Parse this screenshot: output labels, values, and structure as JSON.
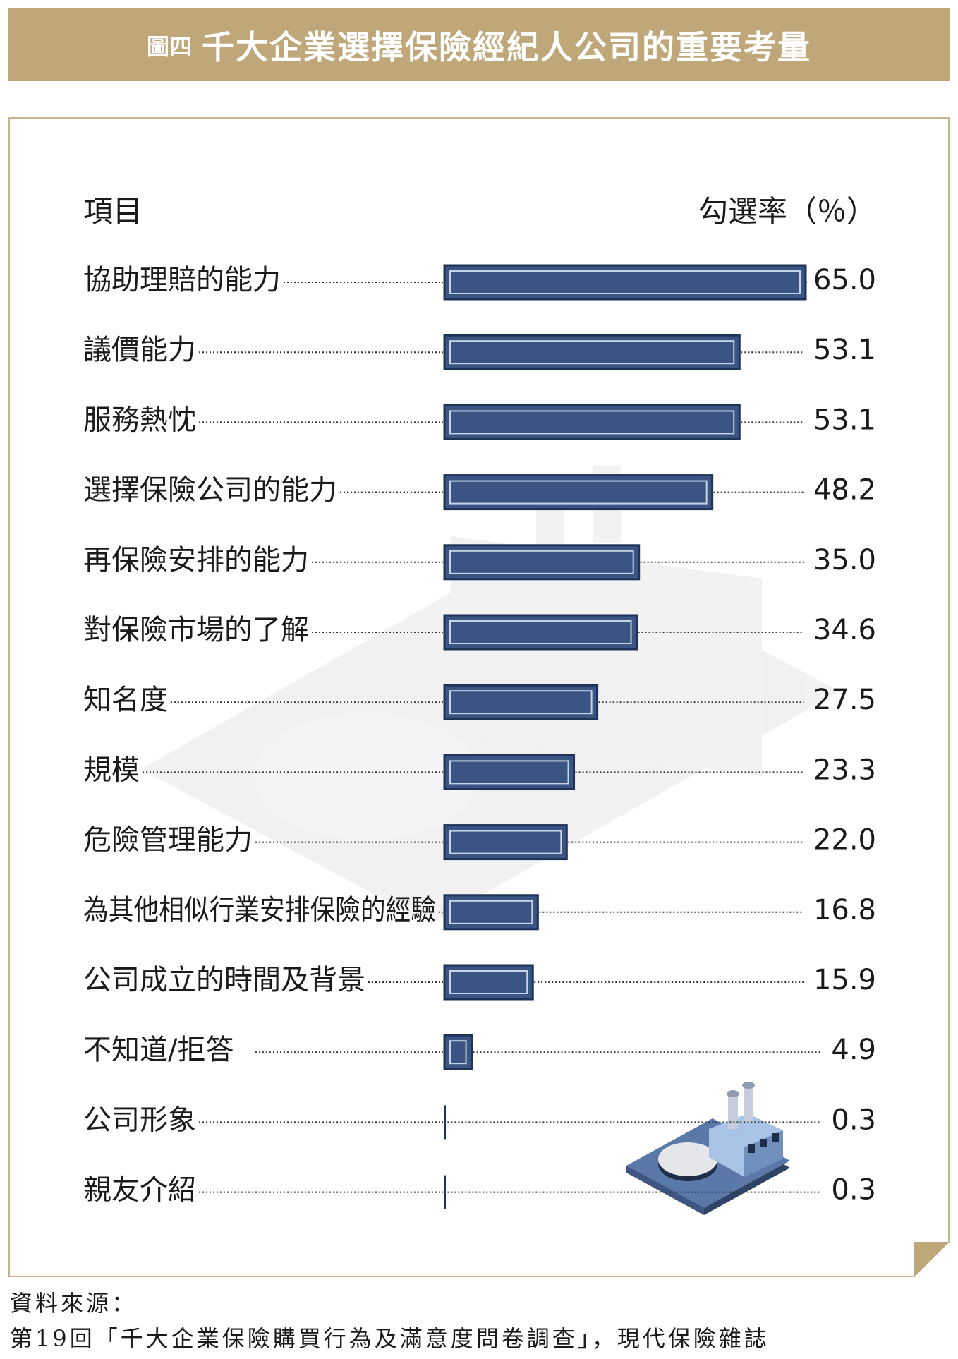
{
  "header": {
    "figure_number": "圖四",
    "title": "千大企業選擇保險經紀人公司的重要考量"
  },
  "columns": {
    "item_label": "項目",
    "rate_label": "勾選率（％）"
  },
  "colors": {
    "title_bar": "#bfa77a",
    "bar_fill": "#3a5584",
    "bar_border": "#1f3358",
    "leader": "#333333"
  },
  "chart_data": {
    "type": "bar",
    "orientation": "horizontal",
    "categories": [
      "協助理賠的能力",
      "議價能力",
      "服務熱忱",
      "選擇保險公司的能力",
      "再保險安排的能力",
      "對保險市場的了解",
      "知名度",
      "規模",
      "危險管理能力",
      "為其他相似行業安排保險的經驗",
      "公司成立的時間及背景",
      "不知道/拒答",
      "公司形象",
      "親友介紹"
    ],
    "values": [
      65.0,
      53.1,
      53.1,
      48.2,
      35.0,
      34.6,
      27.5,
      23.3,
      22.0,
      16.8,
      15.9,
      4.9,
      0.3,
      0.3
    ],
    "value_labels": [
      "65.0",
      "53.1",
      "53.1",
      "48.2",
      "35.0",
      "34.6",
      "27.5",
      "23.3",
      "22.0",
      "16.8",
      "15.9",
      "4.9",
      "0.3",
      "0.3"
    ],
    "title": "千大企業選擇保險經紀人公司的重要考量",
    "xlabel": "勾選率（％）",
    "ylabel": "項目",
    "xlim": [
      0,
      65
    ],
    "grid": false
  },
  "source": {
    "label": "資料來源：",
    "text": "第19回「千大企業保險購買行為及滿意度問卷調查」，現代保險雜誌"
  }
}
